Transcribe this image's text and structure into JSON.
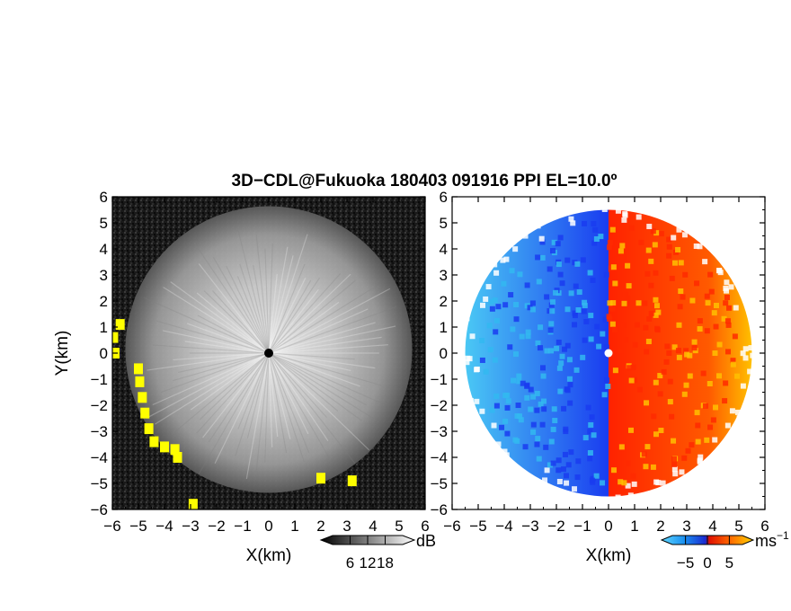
{
  "title": "3D−CDL@Fukuoka 180403 091916 PPI EL=10.0º",
  "colors": {
    "yellow_echo": "#ffff00",
    "vel_neg_dark": "#1a3cf0",
    "vel_neg_light": "#33b8f0",
    "vel_pos_dark": "#ff2a00",
    "vel_pos_light": "#ffc000"
  },
  "chart_data": [
    {
      "type": "heatmap",
      "name": "reflectivity",
      "xlabel": "X(km)",
      "ylabel": "Y(km)",
      "xlim": [
        -6,
        6
      ],
      "ylim": [
        -6,
        6
      ],
      "xticks": [
        "−6",
        "−5",
        "−4",
        "−3",
        "−2",
        "−1",
        "0",
        "1",
        "2",
        "3",
        "4",
        "5",
        "6"
      ],
      "yticks": [
        "6",
        "5",
        "4",
        "3",
        "2",
        "1",
        "0",
        "−1",
        "−2",
        "−3",
        "−4",
        "−5",
        "−6"
      ],
      "colorbar": {
        "unit": "dB",
        "ticks": [
          "6",
          "12",
          "18"
        ],
        "range": [
          0,
          24
        ]
      },
      "echo_radius_km": 5.5,
      "yellow_echo_points_km": [
        [
          -5.7,
          1.1
        ],
        [
          -5.95,
          0.6
        ],
        [
          -5.9,
          0.0
        ],
        [
          -5.0,
          -0.6
        ],
        [
          -4.95,
          -1.1
        ],
        [
          -4.85,
          -1.7
        ],
        [
          -4.75,
          -2.3
        ],
        [
          -4.6,
          -2.9
        ],
        [
          -4.4,
          -3.4
        ],
        [
          -4.0,
          -3.6
        ],
        [
          -3.6,
          -3.7
        ],
        [
          -3.5,
          -4.0
        ],
        [
          -2.9,
          -5.8
        ],
        [
          2.0,
          -4.8
        ],
        [
          3.2,
          -4.9
        ]
      ]
    },
    {
      "type": "heatmap",
      "name": "doppler_velocity",
      "xlabel": "X(km)",
      "xlim": [
        -6,
        6
      ],
      "ylim": [
        -6,
        6
      ],
      "xticks": [
        "−6",
        "−5",
        "−4",
        "−3",
        "−2",
        "−1",
        "0",
        "1",
        "2",
        "3",
        "4",
        "5",
        "6"
      ],
      "yticks": [
        "6",
        "5",
        "4",
        "3",
        "2",
        "1",
        "0",
        "−1",
        "−2",
        "−3",
        "−4",
        "−5",
        "−6"
      ],
      "colorbar": {
        "unit": "ms",
        "unit_exp": "−1",
        "ticks": [
          "−5",
          "0",
          "5"
        ],
        "range": [
          -8,
          8
        ]
      },
      "echo_radius_km": 5.5
    }
  ]
}
